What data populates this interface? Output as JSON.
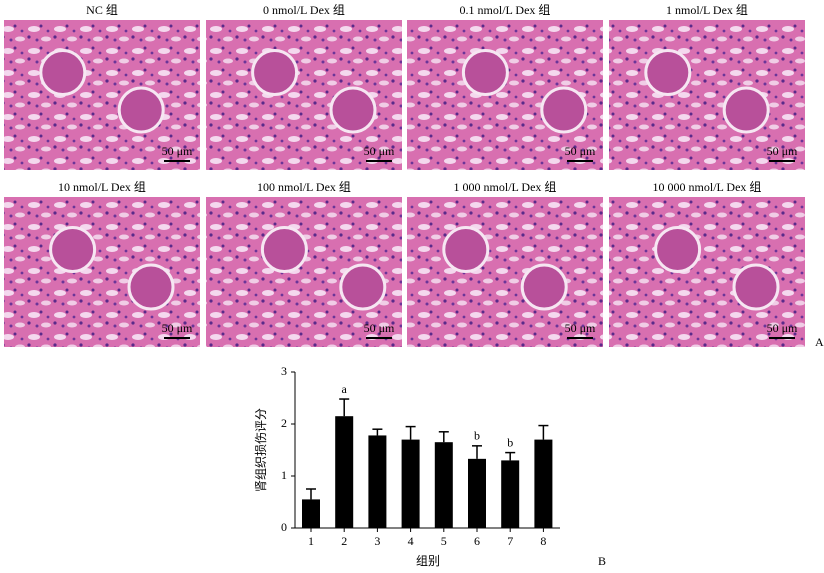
{
  "panels": [
    {
      "label": "NC 组",
      "scale": "50 μm"
    },
    {
      "label": "0 nmol/L Dex 组",
      "scale": "50 μm"
    },
    {
      "label": "0.1 nmol/L Dex 组",
      "scale": "50 μm"
    },
    {
      "label": "1 nmol/L Dex 组",
      "scale": "50 μm"
    },
    {
      "label": "10 nmol/L Dex 组",
      "scale": "50 μm"
    },
    {
      "label": "100 nmol/L Dex 组",
      "scale": "50 μm"
    },
    {
      "label": "1 000 nmol/L Dex 组",
      "scale": "50 μm"
    },
    {
      "label": "10 000 nmol/L Dex 组",
      "scale": "50 μm"
    }
  ],
  "panel_letters": [
    "A",
    "B"
  ],
  "chart_data": {
    "type": "bar",
    "y_label": "肾组织损伤评分",
    "x_label": "组别",
    "categories": [
      "1",
      "2",
      "3",
      "4",
      "5",
      "6",
      "7",
      "8"
    ],
    "values": [
      0.55,
      2.15,
      1.78,
      1.7,
      1.65,
      1.33,
      1.3,
      1.7
    ],
    "errors": [
      0.2,
      0.33,
      0.12,
      0.25,
      0.2,
      0.25,
      0.15,
      0.27
    ],
    "significance": [
      null,
      "a",
      null,
      null,
      null,
      "b",
      "b",
      null
    ],
    "color": "#000000",
    "ylim": [
      0,
      3
    ],
    "yticks": [
      0,
      1,
      2,
      3
    ]
  }
}
